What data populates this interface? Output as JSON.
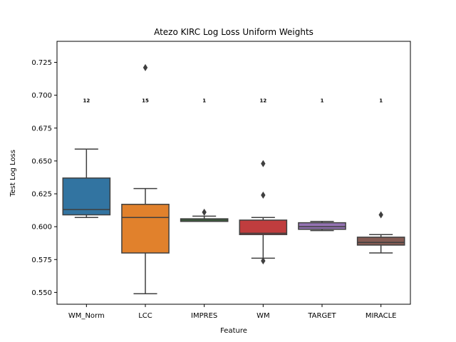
{
  "chart_data": {
    "type": "box",
    "title": "Atezo KIRC Log Loss Uniform Weights",
    "xlabel": "Feature",
    "ylabel": "Test Log Loss",
    "ylim": [
      0.541,
      0.741
    ],
    "yticks": [
      "0.550",
      "0.575",
      "0.600",
      "0.625",
      "0.650",
      "0.675",
      "0.700",
      "0.725"
    ],
    "grid": false,
    "categories": [
      "WM_Norm",
      "LCC",
      "IMPRES",
      "WM",
      "TARGET",
      "MIRACLE"
    ],
    "boxes": [
      {
        "label": "WM_Norm",
        "whisker_low": 0.607,
        "q1": 0.609,
        "median": 0.613,
        "q3": 0.637,
        "whisker_high": 0.659,
        "outliers": [],
        "count": "12",
        "color": "#3274a1"
      },
      {
        "label": "LCC",
        "whisker_low": 0.549,
        "q1": 0.58,
        "median": 0.607,
        "q3": 0.617,
        "whisker_high": 0.629,
        "outliers": [
          0.721
        ],
        "count": "15",
        "color": "#e1812c"
      },
      {
        "label": "IMPRES",
        "whisker_low": 0.604,
        "q1": 0.604,
        "median": 0.605,
        "q3": 0.606,
        "whisker_high": 0.608,
        "outliers": [
          0.611
        ],
        "count": "1",
        "color": "#3a923a"
      },
      {
        "label": "WM",
        "whisker_low": 0.576,
        "q1": 0.594,
        "median": 0.595,
        "q3": 0.605,
        "whisker_high": 0.607,
        "outliers": [
          0.648,
          0.624,
          0.574
        ],
        "count": "12",
        "color": "#c03d3e"
      },
      {
        "label": "TARGET",
        "whisker_low": 0.597,
        "q1": 0.598,
        "median": 0.6,
        "q3": 0.603,
        "whisker_high": 0.604,
        "outliers": [],
        "count": "1",
        "color": "#9372b2"
      },
      {
        "label": "MIRACLE",
        "whisker_low": 0.58,
        "q1": 0.586,
        "median": 0.588,
        "q3": 0.592,
        "whisker_high": 0.594,
        "outliers": [
          0.609
        ],
        "count": "1",
        "color": "#845b53"
      }
    ],
    "count_label_y": 0.696
  }
}
